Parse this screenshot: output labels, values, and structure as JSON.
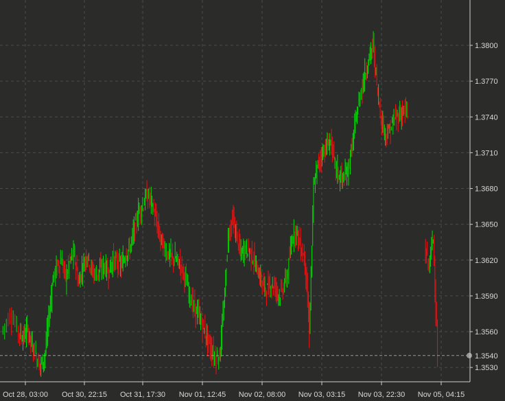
{
  "chart_data": {
    "type": "candlestick",
    "title": "",
    "xlabel": "",
    "ylabel": "",
    "ylim": [
      1.3518,
      1.3838
    ],
    "y_ticks": [
      "1.3530",
      "1.3560",
      "1.3590",
      "1.3620",
      "1.3650",
      "1.3680",
      "1.3710",
      "1.3740",
      "1.3770",
      "1.3800"
    ],
    "x_ticks": [
      "Oct 28, 03:00",
      "Oct 30, 22:15",
      "Oct 31, 17:30",
      "Nov 01, 12:45",
      "Nov 02, 08:00",
      "Nov 03, 03:15",
      "Nov 03, 22:30",
      "Nov 05, 04:15"
    ],
    "current_price": 1.354,
    "current_price_label": "1.3540",
    "grid": true,
    "colors": {
      "up": "#00dd00",
      "down": "#ee1111",
      "background": "#2b2c2a",
      "grid": "#4a4c48",
      "axis": "#d0d0d0",
      "text": "#d8d8d8"
    },
    "series": [
      {
        "name": "",
        "segments": [
          {
            "x_start": 0,
            "x_end": 4,
            "points": [
              [
                0,
                1.356
              ],
              [
                2,
                1.3575
              ],
              [
                4,
                1.356
              ]
            ]
          },
          {
            "x_start": 4,
            "x_end": 7,
            "points": [
              [
                4,
                1.356
              ],
              [
                5,
                1.3555
              ],
              [
                6,
                1.3562
              ],
              [
                7,
                1.355
              ]
            ]
          },
          {
            "x_start": 7,
            "x_end": 10,
            "points": [
              [
                7,
                1.355
              ],
              [
                8,
                1.354
              ],
              [
                9,
                1.3532
              ],
              [
                10,
                1.3538
              ]
            ]
          },
          {
            "x_start": 10,
            "x_end": 13,
            "points": [
              [
                10,
                1.3538
              ],
              [
                11,
                1.357
              ],
              [
                12,
                1.3605
              ],
              [
                13,
                1.3615
              ]
            ]
          },
          {
            "x_start": 13,
            "x_end": 19,
            "points": [
              [
                13,
                1.3615
              ],
              [
                14,
                1.362
              ],
              [
                15,
                1.3605
              ],
              [
                16,
                1.362
              ],
              [
                17,
                1.3625
              ],
              [
                18,
                1.36
              ],
              [
                19,
                1.3615
              ]
            ]
          },
          {
            "x_start": 19,
            "x_end": 25,
            "points": [
              [
                19,
                1.3615
              ],
              [
                20,
                1.3625
              ],
              [
                21,
                1.3612
              ],
              [
                22,
                1.3608
              ],
              [
                23,
                1.3612
              ],
              [
                24,
                1.3615
              ],
              [
                25,
                1.361
              ]
            ]
          },
          {
            "x_start": 25,
            "x_end": 30,
            "points": [
              [
                25,
                1.361
              ],
              [
                26,
                1.362
              ],
              [
                27,
                1.3618
              ],
              [
                28,
                1.3615
              ],
              [
                29,
                1.3625
              ],
              [
                30,
                1.363
              ]
            ]
          },
          {
            "x_start": 30,
            "x_end": 35,
            "points": [
              [
                30,
                1.363
              ],
              [
                31,
                1.3645
              ],
              [
                32,
                1.366
              ],
              [
                33,
                1.3665
              ],
              [
                34,
                1.3675
              ],
              [
                35,
                1.367
              ]
            ]
          },
          {
            "x_start": 35,
            "x_end": 41,
            "points": [
              [
                35,
                1.367
              ],
              [
                36,
                1.3655
              ],
              [
                37,
                1.364
              ],
              [
                38,
                1.363
              ],
              [
                39,
                1.3625
              ],
              [
                40,
                1.3622
              ],
              [
                41,
                1.362
              ]
            ]
          },
          {
            "x_start": 41,
            "x_end": 46,
            "points": [
              [
                41,
                1.362
              ],
              [
                42,
                1.3615
              ],
              [
                43,
                1.3605
              ],
              [
                44,
                1.359
              ],
              [
                45,
                1.358
              ],
              [
                46,
                1.3575
              ]
            ]
          },
          {
            "x_start": 46,
            "x_end": 51,
            "points": [
              [
                46,
                1.3575
              ],
              [
                47,
                1.3565
              ],
              [
                48,
                1.3555
              ],
              [
                49,
                1.3545
              ],
              [
                50,
                1.3538
              ],
              [
                51,
                1.354
              ]
            ]
          },
          {
            "x_start": 51,
            "x_end": 56,
            "points": [
              [
                51,
                1.354
              ],
              [
                52,
                1.358
              ],
              [
                53,
                1.364
              ],
              [
                54,
                1.3655
              ],
              [
                55,
                1.364
              ],
              [
                56,
                1.3625
              ]
            ]
          },
          {
            "x_start": 56,
            "x_end": 61,
            "points": [
              [
                56,
                1.3625
              ],
              [
                57,
                1.363
              ],
              [
                58,
                1.3628
              ],
              [
                59,
                1.362
              ],
              [
                60,
                1.361
              ],
              [
                61,
                1.36
              ]
            ]
          },
          {
            "x_start": 61,
            "x_end": 66,
            "points": [
              [
                61,
                1.36
              ],
              [
                62,
                1.3595
              ],
              [
                63,
                1.36
              ],
              [
                64,
                1.3598
              ],
              [
                65,
                1.359
              ],
              [
                66,
                1.3598
              ]
            ]
          },
          {
            "x_start": 66,
            "x_end": 71,
            "points": [
              [
                66,
                1.3598
              ],
              [
                67,
                1.361
              ],
              [
                68,
                1.364
              ],
              [
                69,
                1.3645
              ],
              [
                70,
                1.363
              ],
              [
                71,
                1.362
              ]
            ]
          },
          {
            "x_start": 71,
            "x_end": 76,
            "points": [
              [
                71,
                1.362
              ],
              [
                72,
                1.356
              ],
              [
                73,
                1.368
              ],
              [
                74,
                1.37
              ],
              [
                75,
                1.371
              ],
              [
                76,
                1.3715
              ]
            ]
          },
          {
            "x_start": 76,
            "x_end": 81,
            "points": [
              [
                76,
                1.3715
              ],
              [
                77,
                1.372
              ],
              [
                78,
                1.37
              ],
              [
                79,
                1.369
              ],
              [
                80,
                1.3688
              ],
              [
                81,
                1.3695
              ]
            ]
          },
          {
            "x_start": 81,
            "x_end": 86,
            "points": [
              [
                81,
                1.3695
              ],
              [
                82,
                1.3715
              ],
              [
                83,
                1.374
              ],
              [
                84,
                1.376
              ],
              [
                85,
                1.3775
              ],
              [
                86,
                1.379
              ]
            ]
          },
          {
            "x_start": 86,
            "x_end": 91,
            "points": [
              [
                86,
                1.379
              ],
              [
                87,
                1.38
              ],
              [
                88,
                1.376
              ],
              [
                89,
                1.3735
              ],
              [
                90,
                1.3725
              ],
              [
                91,
                1.373
              ]
            ]
          },
          {
            "x_start": 91,
            "x_end": 95,
            "points": [
              [
                91,
                1.373
              ],
              [
                92,
                1.3738
              ],
              [
                93,
                1.3742
              ],
              [
                94,
                1.3745
              ],
              [
                95,
                1.3743
              ]
            ]
          },
          {
            "x_start": 99,
            "x_end": 102,
            "points": [
              [
                99,
                1.363
              ],
              [
                100,
                1.3615
              ],
              [
                101,
                1.364
              ],
              [
                102,
                1.354
              ]
            ]
          }
        ]
      }
    ]
  }
}
